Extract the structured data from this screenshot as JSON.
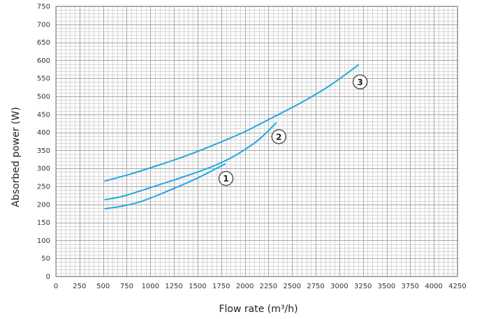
{
  "chart_data": {
    "type": "line",
    "title": "",
    "xlabel": "Flow rate (m³/h)",
    "ylabel": "Absorbed power (W)",
    "xlim": [
      0,
      4250
    ],
    "ylim": [
      0,
      750
    ],
    "x_ticks": [
      "0",
      "250",
      "500",
      "750",
      "1000",
      "1250",
      "1500",
      "1750",
      "2000",
      "2250",
      "2500",
      "2750",
      "3000",
      "3250",
      "3500",
      "3750",
      "4000",
      "4250"
    ],
    "y_ticks": [
      "0",
      "50",
      "100",
      "150",
      "200",
      "250",
      "300",
      "350",
      "400",
      "450",
      "500",
      "550",
      "600",
      "650",
      "700",
      "750"
    ],
    "grid": true,
    "grid_minor_x_step": 50,
    "grid_minor_y_step": 10,
    "line_color": "#1ea7e1",
    "series": [
      {
        "label": "1",
        "x": [
          520,
          700,
          900,
          1100,
          1300,
          1500,
          1650,
          1790
        ],
        "values": [
          188,
          195,
          208,
          228,
          250,
          273,
          293,
          312
        ],
        "label_at": [
          1800,
          272
        ]
      },
      {
        "label": "2",
        "x": [
          520,
          700,
          900,
          1100,
          1300,
          1500,
          1700,
          1900,
          2100,
          2200,
          2330
        ],
        "values": [
          213,
          222,
          238,
          255,
          272,
          290,
          310,
          336,
          370,
          392,
          426
        ],
        "label_at": [
          2360,
          388
        ]
      },
      {
        "label": "3",
        "x": [
          520,
          800,
          1100,
          1400,
          1700,
          2000,
          2300,
          2600,
          2900,
          3200
        ],
        "values": [
          265,
          285,
          310,
          337,
          368,
          402,
          442,
          483,
          530,
          587
        ],
        "label_at": [
          3220,
          540
        ]
      }
    ]
  }
}
